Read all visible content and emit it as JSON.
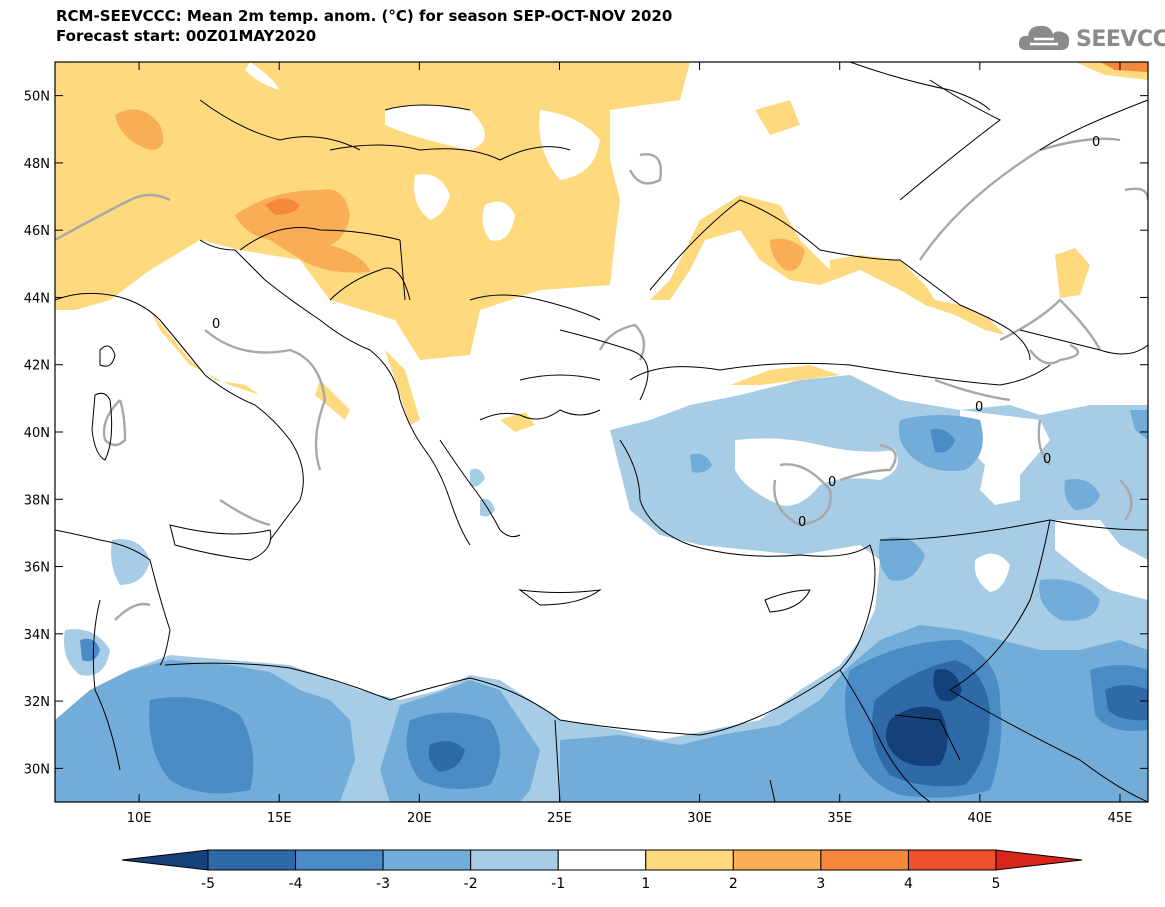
{
  "header": {
    "title_line1": "RCM-SEEVCCC: Mean 2m temp. anom. (°C) for season SEP-OCT-NOV 2020",
    "title_line2": "Forecast start: 00Z01MAY2020"
  },
  "logo": {
    "text": "SEEVCCC",
    "icon": "cloud-logo-icon"
  },
  "map": {
    "lon_range": [
      7,
      46
    ],
    "lat_range": [
      29,
      51
    ],
    "lat_ticks": [
      {
        "value": 50,
        "label": "50N"
      },
      {
        "value": 48,
        "label": "48N"
      },
      {
        "value": 46,
        "label": "46N"
      },
      {
        "value": 44,
        "label": "44N"
      },
      {
        "value": 42,
        "label": "42N"
      },
      {
        "value": 40,
        "label": "40N"
      },
      {
        "value": 38,
        "label": "38N"
      },
      {
        "value": 36,
        "label": "36N"
      },
      {
        "value": 34,
        "label": "34N"
      },
      {
        "value": 32,
        "label": "32N"
      },
      {
        "value": 30,
        "label": "30N"
      }
    ],
    "lon_ticks": [
      {
        "value": 10,
        "label": "10E"
      },
      {
        "value": 15,
        "label": "15E"
      },
      {
        "value": 20,
        "label": "20E"
      },
      {
        "value": 25,
        "label": "25E"
      },
      {
        "value": 30,
        "label": "30E"
      },
      {
        "value": 35,
        "label": "35E"
      },
      {
        "value": 40,
        "label": "40E"
      },
      {
        "value": 45,
        "label": "45E"
      }
    ],
    "contour_label": "0"
  },
  "colorbar": {
    "levels": [
      "-5",
      "-4",
      "-3",
      "-2",
      "-1",
      "1",
      "2",
      "3",
      "4",
      "5"
    ],
    "colors": [
      "#14417a",
      "#2f6aa8",
      "#4b8cc6",
      "#72acd8",
      "#a6cce6",
      "#ffffff",
      "#fed97e",
      "#f9ad55",
      "#f5883c",
      "#ee4f2d",
      "#d9261c"
    ]
  }
}
